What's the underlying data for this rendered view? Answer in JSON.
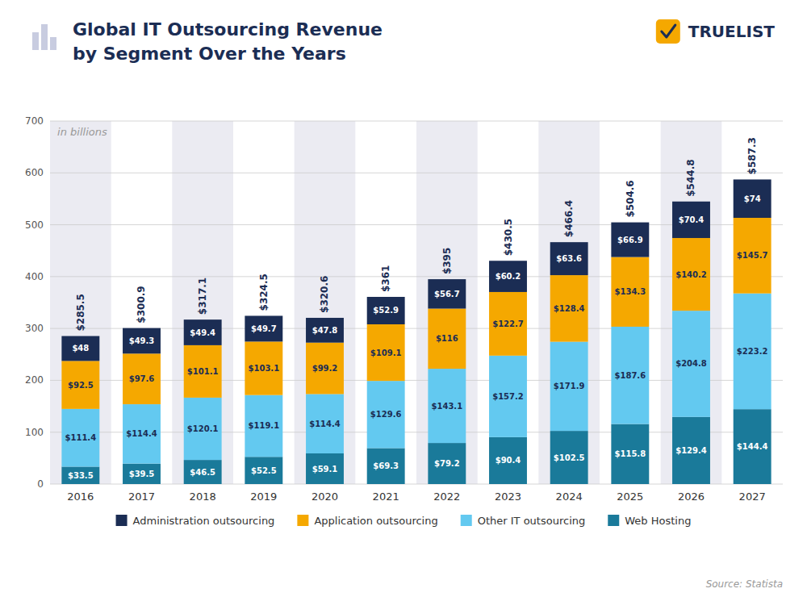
{
  "chart_data": {
    "type": "bar",
    "stacked": true,
    "title": "Global IT Outsourcing Revenue",
    "subtitle": "by Segment Over the Years",
    "annotations": [
      "in billions",
      "TRUELIST",
      "Source: Statista"
    ],
    "categories": [
      "2016",
      "2017",
      "2018",
      "2019",
      "2020",
      "2021",
      "2022",
      "2023",
      "2024",
      "2025",
      "2026",
      "2027"
    ],
    "series": [
      {
        "name": "Web Hosting",
        "color": "#1a7a9a",
        "values": [
          33.5,
          39.5,
          46.5,
          52.5,
          59.1,
          69.3,
          79.2,
          90.4,
          102.5,
          115.8,
          129.4,
          144.4
        ],
        "value_labels": [
          "$33.5",
          "$39.5",
          "$46.5",
          "$52.5",
          "$59.1",
          "$69.3",
          "$79.2",
          "$90.4",
          "$102.5",
          "$115.8",
          "$129.4",
          "$144.4"
        ]
      },
      {
        "name": "Other IT outsourcing",
        "color": "#63c9f0",
        "values": [
          111.4,
          114.4,
          120.1,
          119.1,
          114.4,
          129.6,
          143.1,
          157.2,
          171.9,
          187.6,
          204.8,
          223.2
        ],
        "value_labels": [
          "$111.4",
          "$114.4",
          "$120.1",
          "$119.1",
          "$114.4",
          "$129.6",
          "$143.1",
          "$157.2",
          "$171.9",
          "$187.6",
          "$204.8",
          "$223.2"
        ]
      },
      {
        "name": "Application outsourcing",
        "color": "#f5a800",
        "values": [
          92.5,
          97.6,
          101.1,
          103.1,
          99.2,
          109.1,
          116,
          122.7,
          128.4,
          134.3,
          140.2,
          145.7
        ],
        "value_labels": [
          "$92.5",
          "$97.6",
          "$101.1",
          "$103.1",
          "$99.2",
          "$109.1",
          "$116",
          "$122.7",
          "$128.4",
          "$134.3",
          "$140.2",
          "$145.7"
        ]
      },
      {
        "name": "Administration outsourcing",
        "color": "#1b2d54",
        "values": [
          48,
          49.3,
          49.4,
          49.7,
          47.8,
          52.9,
          56.7,
          60.2,
          63.6,
          66.9,
          70.4,
          74
        ],
        "value_labels": [
          "$48",
          "$49.3",
          "$49.4",
          "$49.7",
          "$47.8",
          "$52.9",
          "$56.7",
          "$60.2",
          "$63.6",
          "$66.9",
          "$70.4",
          "$74"
        ]
      }
    ],
    "totals": [
      285.5,
      300.9,
      317.1,
      324.5,
      320.6,
      361,
      395,
      430.5,
      466.4,
      504.6,
      544.8,
      587.3
    ],
    "total_labels": [
      "$285.5",
      "$300.9",
      "$317.1",
      "$324.5",
      "$320.6",
      "$361",
      "$395",
      "$430.5",
      "$466.4",
      "$504.6",
      "$544.8",
      "$587.3"
    ],
    "ylim": [
      0,
      700
    ],
    "yticks": [
      0,
      100,
      200,
      300,
      400,
      500,
      600,
      700
    ],
    "grid": true,
    "legend": "bottom",
    "data_labels": true
  }
}
